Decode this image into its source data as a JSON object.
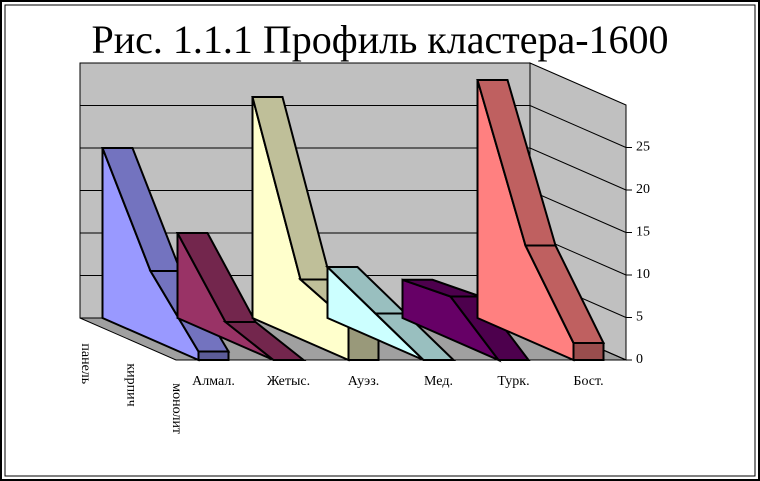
{
  "chart_data": {
    "type": "area3d",
    "title": "Рис. 1.1.1 Профиль кластера-1600",
    "categories": [
      "панель",
      "кирпич",
      "монолит"
    ],
    "series": [
      {
        "name": "Алмал.",
        "color": "#9999ff",
        "values": [
          20,
          8,
          1
        ]
      },
      {
        "name": "Жетыс.",
        "color": "#993366",
        "values": [
          10,
          2,
          0
        ]
      },
      {
        "name": "Ауэз.",
        "color": "#ffffcc",
        "values": [
          26,
          7,
          4.5
        ]
      },
      {
        "name": "Мед.",
        "color": "#ccffff",
        "values": [
          6,
          3,
          0
        ]
      },
      {
        "name": "Турк.",
        "color": "#660066",
        "values": [
          4.5,
          5,
          0
        ]
      },
      {
        "name": "Бост.",
        "color": "#ff8080",
        "values": [
          28,
          11,
          2
        ]
      }
    ],
    "ylim": [
      0,
      30
    ],
    "yticks": [
      0,
      5,
      10,
      15,
      20,
      25
    ],
    "grid": true
  }
}
